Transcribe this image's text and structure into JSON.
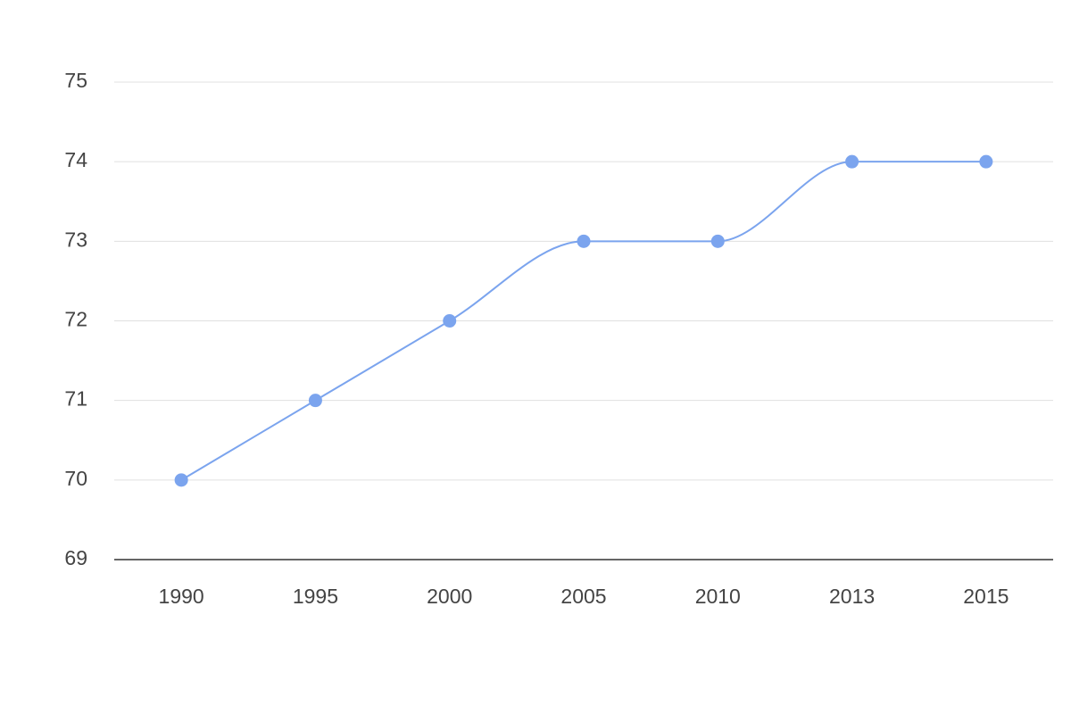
{
  "chart_data": {
    "type": "line",
    "categories": [
      "1990",
      "1995",
      "2000",
      "2005",
      "2010",
      "2013",
      "2015"
    ],
    "values": [
      70,
      71,
      72,
      73,
      73,
      74,
      74
    ],
    "color": "#7ba4ee",
    "ylim": [
      69,
      75
    ],
    "yticks": [
      69,
      70,
      71,
      72,
      73,
      74,
      75
    ],
    "grid": true,
    "smooth": true
  }
}
